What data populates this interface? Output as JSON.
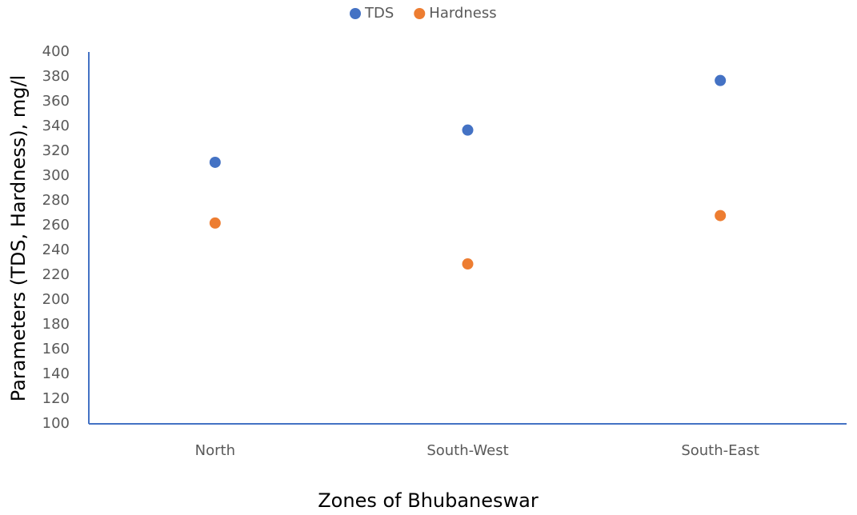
{
  "chart_data": {
    "type": "scatter",
    "x_label": "Zones of Bhubaneswar",
    "y_label": "Parameters (TDS, Hardness), mg/l",
    "categories": [
      "North",
      "South-West",
      "South-East"
    ],
    "series": [
      {
        "name": "TDS",
        "color": "#4472c4",
        "values": [
          311,
          337,
          377
        ]
      },
      {
        "name": "Hardness",
        "color": "#ed7d31",
        "values": [
          262,
          229,
          268
        ]
      }
    ],
    "ylim": [
      100,
      400
    ],
    "yticks": [
      100,
      120,
      140,
      160,
      180,
      200,
      220,
      240,
      260,
      280,
      300,
      320,
      340,
      360,
      380,
      400
    ],
    "legend": "top",
    "grid": false
  }
}
